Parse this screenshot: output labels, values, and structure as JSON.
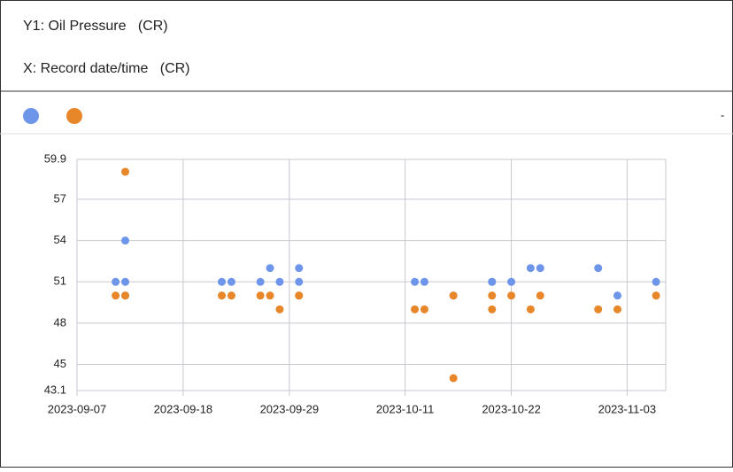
{
  "header": {
    "y_label": "Y1: Oil Pressure   (CR)",
    "x_label": "X: Record date/time   (CR)"
  },
  "legend_note": "-",
  "chart_data": {
    "type": "scatter",
    "xlim": [
      "2023-09-07",
      "2023-11-07"
    ],
    "xticks": [
      "2023-09-07",
      "2023-09-18",
      "2023-09-29",
      "2023-10-11",
      "2023-10-22",
      "2023-11-03"
    ],
    "ylim": [
      43.1,
      59.9
    ],
    "yticks": [
      59.9,
      57,
      54,
      51,
      48,
      45,
      43.1
    ],
    "grid": true,
    "series": [
      {
        "color": "#6d95ea",
        "x": [
          "2023-09-11",
          "2023-09-12",
          "2023-09-12",
          "2023-09-12",
          "2023-09-22",
          "2023-09-23",
          "2023-09-26",
          "2023-09-27",
          "2023-09-28",
          "2023-09-30",
          "2023-09-30",
          "2023-10-12",
          "2023-10-13",
          "2023-10-16",
          "2023-10-20",
          "2023-10-20",
          "2023-10-22",
          "2023-10-24",
          "2023-10-25",
          "2023-10-31",
          "2023-11-02",
          "2023-11-06"
        ],
        "values": [
          51,
          51,
          54,
          50,
          51,
          51,
          51,
          52,
          51,
          51,
          52,
          51,
          51,
          50,
          51,
          51,
          51,
          52,
          52,
          52,
          50,
          51
        ]
      },
      {
        "color": "#e8862a",
        "x": [
          "2023-09-11",
          "2023-09-12",
          "2023-09-12",
          "2023-09-22",
          "2023-09-23",
          "2023-09-26",
          "2023-09-27",
          "2023-09-28",
          "2023-09-30",
          "2023-09-30",
          "2023-10-12",
          "2023-10-13",
          "2023-10-16",
          "2023-10-16",
          "2023-10-20",
          "2023-10-20",
          "2023-10-22",
          "2023-10-24",
          "2023-10-25",
          "2023-10-31",
          "2023-11-02",
          "2023-11-06"
        ],
        "values": [
          50,
          59,
          50,
          50,
          50,
          50,
          50,
          49,
          50,
          50,
          49,
          49,
          44,
          50,
          49,
          50,
          50,
          49,
          50,
          49,
          49,
          50
        ]
      }
    ]
  }
}
